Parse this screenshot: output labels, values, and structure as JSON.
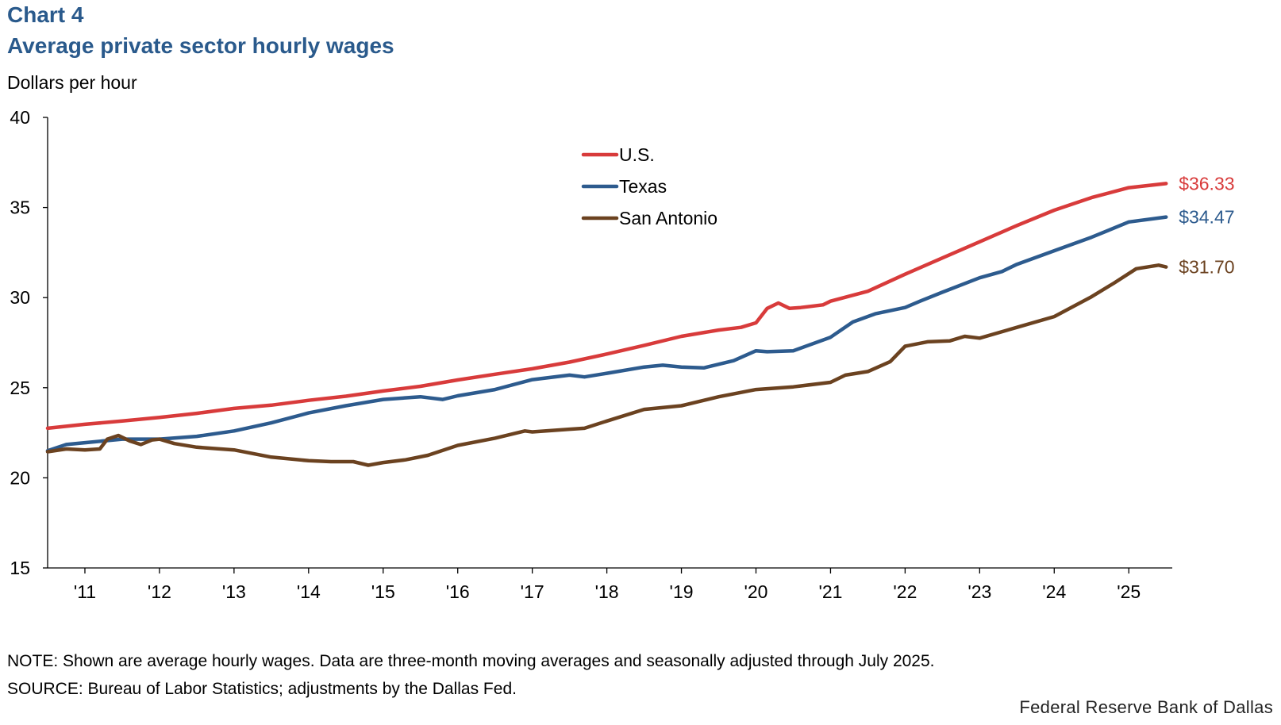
{
  "chart_number": "Chart 4",
  "title": "Average private sector hourly wages",
  "y_unit_label": "Dollars per hour",
  "colors": {
    "us": "#d83b3b",
    "texas": "#2d5b8e",
    "san_antonio": "#6b4220",
    "axis": "#000000"
  },
  "chart_data": {
    "type": "line",
    "title": "Average private sector hourly wages",
    "ylabel": "Dollars per hour",
    "xlabel": "",
    "ylim": [
      15,
      40
    ],
    "yticks": [
      15,
      20,
      25,
      30,
      35,
      40
    ],
    "x_range": [
      2010.5,
      2025.583
    ],
    "x_tick_labels": [
      "'11",
      "'12",
      "'13",
      "'14",
      "'15",
      "'16",
      "'17",
      "'18",
      "'19",
      "'20",
      "'21",
      "'22",
      "'23",
      "'24",
      "'25"
    ],
    "grid": false,
    "legend_position": "top-center",
    "series": [
      {
        "name": "U.S.",
        "color": "#d83b3b",
        "end_label": "$36.33",
        "points": [
          [
            2010.5,
            22.75
          ],
          [
            2011.0,
            22.97
          ],
          [
            2011.5,
            23.15
          ],
          [
            2012.0,
            23.35
          ],
          [
            2012.5,
            23.58
          ],
          [
            2013.0,
            23.85
          ],
          [
            2013.5,
            24.03
          ],
          [
            2014.0,
            24.3
          ],
          [
            2014.5,
            24.53
          ],
          [
            2015.0,
            24.82
          ],
          [
            2015.5,
            25.08
          ],
          [
            2016.0,
            25.43
          ],
          [
            2016.5,
            25.75
          ],
          [
            2017.0,
            26.05
          ],
          [
            2017.5,
            26.42
          ],
          [
            2018.0,
            26.87
          ],
          [
            2018.5,
            27.35
          ],
          [
            2019.0,
            27.85
          ],
          [
            2019.5,
            28.2
          ],
          [
            2019.8,
            28.35
          ],
          [
            2020.0,
            28.6
          ],
          [
            2020.15,
            29.4
          ],
          [
            2020.3,
            29.7
          ],
          [
            2020.45,
            29.4
          ],
          [
            2020.6,
            29.45
          ],
          [
            2020.9,
            29.6
          ],
          [
            2021.0,
            29.8
          ],
          [
            2021.5,
            30.35
          ],
          [
            2022.0,
            31.3
          ],
          [
            2022.5,
            32.2
          ],
          [
            2023.0,
            33.1
          ],
          [
            2023.5,
            34.0
          ],
          [
            2024.0,
            34.85
          ],
          [
            2024.5,
            35.55
          ],
          [
            2025.0,
            36.1
          ],
          [
            2025.5,
            36.33
          ]
        ]
      },
      {
        "name": "Texas",
        "color": "#2d5b8e",
        "end_label": "$34.47",
        "points": [
          [
            2010.5,
            21.5
          ],
          [
            2010.75,
            21.85
          ],
          [
            2011.0,
            21.95
          ],
          [
            2011.5,
            22.15
          ],
          [
            2012.0,
            22.15
          ],
          [
            2012.5,
            22.3
          ],
          [
            2013.0,
            22.6
          ],
          [
            2013.5,
            23.05
          ],
          [
            2014.0,
            23.6
          ],
          [
            2014.5,
            24.0
          ],
          [
            2015.0,
            24.35
          ],
          [
            2015.5,
            24.5
          ],
          [
            2015.8,
            24.35
          ],
          [
            2016.0,
            24.55
          ],
          [
            2016.5,
            24.9
          ],
          [
            2017.0,
            25.45
          ],
          [
            2017.5,
            25.7
          ],
          [
            2017.7,
            25.6
          ],
          [
            2018.0,
            25.8
          ],
          [
            2018.5,
            26.15
          ],
          [
            2018.75,
            26.25
          ],
          [
            2019.0,
            26.15
          ],
          [
            2019.3,
            26.1
          ],
          [
            2019.7,
            26.5
          ],
          [
            2020.0,
            27.05
          ],
          [
            2020.15,
            27.0
          ],
          [
            2020.5,
            27.05
          ],
          [
            2021.0,
            27.8
          ],
          [
            2021.3,
            28.65
          ],
          [
            2021.6,
            29.1
          ],
          [
            2022.0,
            29.45
          ],
          [
            2022.2,
            29.8
          ],
          [
            2022.5,
            30.3
          ],
          [
            2023.0,
            31.1
          ],
          [
            2023.3,
            31.45
          ],
          [
            2023.5,
            31.85
          ],
          [
            2024.0,
            32.6
          ],
          [
            2024.5,
            33.35
          ],
          [
            2025.0,
            34.2
          ],
          [
            2025.5,
            34.47
          ]
        ]
      },
      {
        "name": "San Antonio",
        "color": "#6b4220",
        "end_label": "$31.70",
        "points": [
          [
            2010.5,
            21.45
          ],
          [
            2010.75,
            21.6
          ],
          [
            2011.0,
            21.55
          ],
          [
            2011.2,
            21.6
          ],
          [
            2011.3,
            22.15
          ],
          [
            2011.45,
            22.35
          ],
          [
            2011.6,
            22.05
          ],
          [
            2011.75,
            21.85
          ],
          [
            2011.9,
            22.1
          ],
          [
            2012.0,
            22.15
          ],
          [
            2012.2,
            21.9
          ],
          [
            2012.5,
            21.7
          ],
          [
            2013.0,
            21.55
          ],
          [
            2013.5,
            21.15
          ],
          [
            2014.0,
            20.95
          ],
          [
            2014.3,
            20.9
          ],
          [
            2014.6,
            20.9
          ],
          [
            2014.8,
            20.7
          ],
          [
            2015.0,
            20.85
          ],
          [
            2015.3,
            21.0
          ],
          [
            2015.6,
            21.25
          ],
          [
            2016.0,
            21.8
          ],
          [
            2016.5,
            22.2
          ],
          [
            2016.9,
            22.6
          ],
          [
            2017.0,
            22.55
          ],
          [
            2017.5,
            22.7
          ],
          [
            2017.7,
            22.75
          ],
          [
            2018.0,
            23.15
          ],
          [
            2018.5,
            23.8
          ],
          [
            2019.0,
            24.0
          ],
          [
            2019.5,
            24.5
          ],
          [
            2020.0,
            24.9
          ],
          [
            2020.5,
            25.05
          ],
          [
            2021.0,
            25.3
          ],
          [
            2021.2,
            25.7
          ],
          [
            2021.5,
            25.9
          ],
          [
            2021.8,
            26.45
          ],
          [
            2022.0,
            27.3
          ],
          [
            2022.3,
            27.55
          ],
          [
            2022.6,
            27.6
          ],
          [
            2022.8,
            27.85
          ],
          [
            2023.0,
            27.75
          ],
          [
            2023.5,
            28.35
          ],
          [
            2024.0,
            28.95
          ],
          [
            2024.5,
            30.05
          ],
          [
            2024.8,
            30.8
          ],
          [
            2025.1,
            31.6
          ],
          [
            2025.4,
            31.8
          ],
          [
            2025.5,
            31.7
          ]
        ]
      }
    ]
  },
  "note": "NOTE: Shown are average hourly wages. Data are three-month moving averages and seasonally adjusted through July 2025.",
  "source": "SOURCE: Bureau of Labor Statistics; adjustments by the Dallas Fed.",
  "credit": "Federal Reserve Bank of Dallas"
}
